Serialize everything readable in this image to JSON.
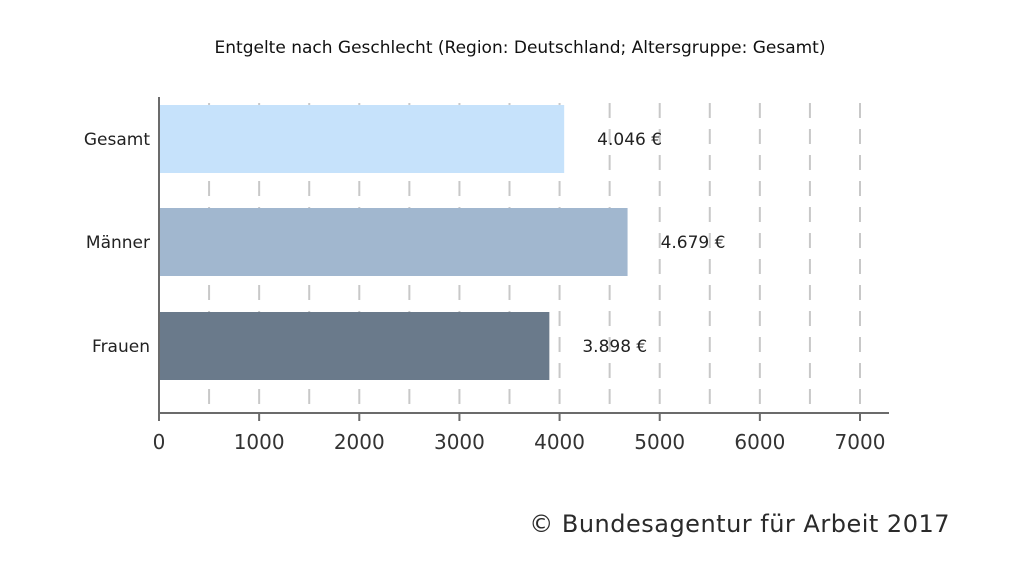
{
  "chart_data": {
    "type": "bar",
    "orientation": "horizontal",
    "title": "Entgelte nach Geschlecht (Region: Deutschland; Altersgruppe: Gesamt)",
    "categories": [
      "Gesamt",
      "Männer",
      "Frauen"
    ],
    "values": [
      4046,
      4679,
      3898
    ],
    "value_labels": [
      "4.046 €",
      "4.679 €",
      "3.898 €"
    ],
    "colors": [
      "#c6e2fb",
      "#a1b7cf",
      "#6a7a8b"
    ],
    "xlim": [
      0,
      7000
    ],
    "xticks": [
      "0",
      "1000",
      "2000",
      "3000",
      "4000",
      "5000",
      "6000",
      "7000"
    ],
    "grid": "vertical-dashed",
    "xlabel": "",
    "ylabel": ""
  },
  "footer": {
    "copyright": "© Bundesagentur für Arbeit 2017"
  }
}
